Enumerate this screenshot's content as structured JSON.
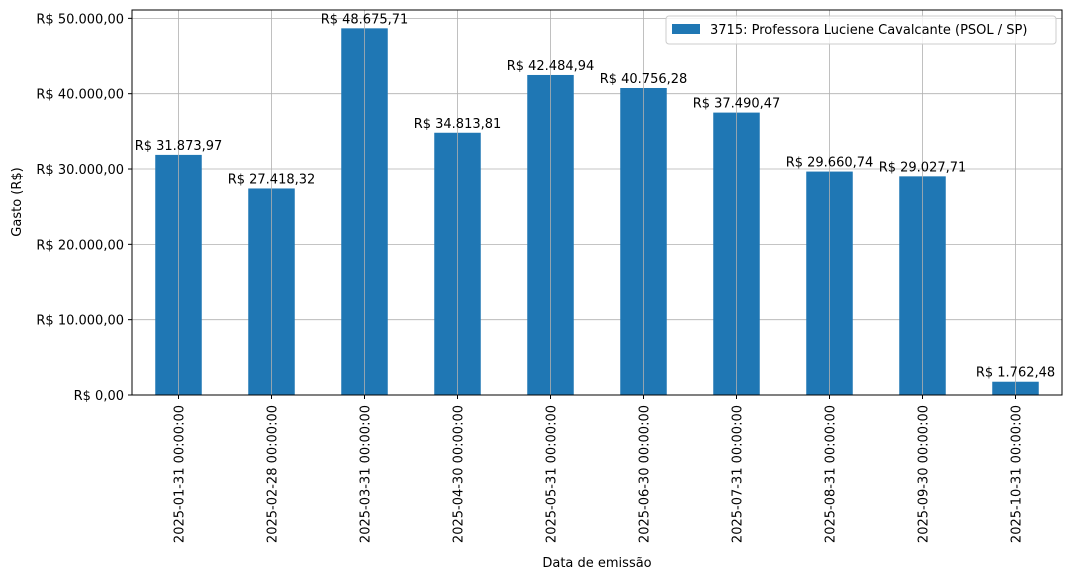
{
  "chart_data": {
    "type": "bar",
    "categories": [
      "2025-01-31 00:00:00",
      "2025-02-28 00:00:00",
      "2025-03-31 00:00:00",
      "2025-04-30 00:00:00",
      "2025-05-31 00:00:00",
      "2025-06-30 00:00:00",
      "2025-07-31 00:00:00",
      "2025-08-31 00:00:00",
      "2025-09-30 00:00:00",
      "2025-10-31 00:00:00"
    ],
    "series": [
      {
        "name": "3715: Professora Luciene Cavalcante (PSOL / SP)",
        "color": "#1f77b4",
        "values": [
          31873.97,
          27418.32,
          48675.71,
          34813.81,
          42484.94,
          40756.28,
          37490.47,
          29660.74,
          29027.71,
          1762.48
        ],
        "value_labels": [
          "R$ 31.873,97",
          "R$ 27.418,32",
          "R$ 48.675,71",
          "R$ 34.813,81",
          "R$ 42.484,94",
          "R$ 40.756,28",
          "R$ 37.490,47",
          "R$ 29.660,74",
          "R$ 29.027,71",
          "R$ 1.762,48"
        ]
      }
    ],
    "xlabel": "Data de emissão",
    "ylabel": "Gasto (R$)",
    "ylim": [
      0,
      51110
    ],
    "yticks": [
      0,
      10000,
      20000,
      30000,
      40000,
      50000
    ],
    "ytick_labels": [
      "R$ 0,00",
      "R$ 10.000,00",
      "R$ 20.000,00",
      "R$ 30.000,00",
      "R$ 40.000,00",
      "R$ 50.000,00"
    ],
    "grid": true,
    "legend_position": "top-right"
  }
}
